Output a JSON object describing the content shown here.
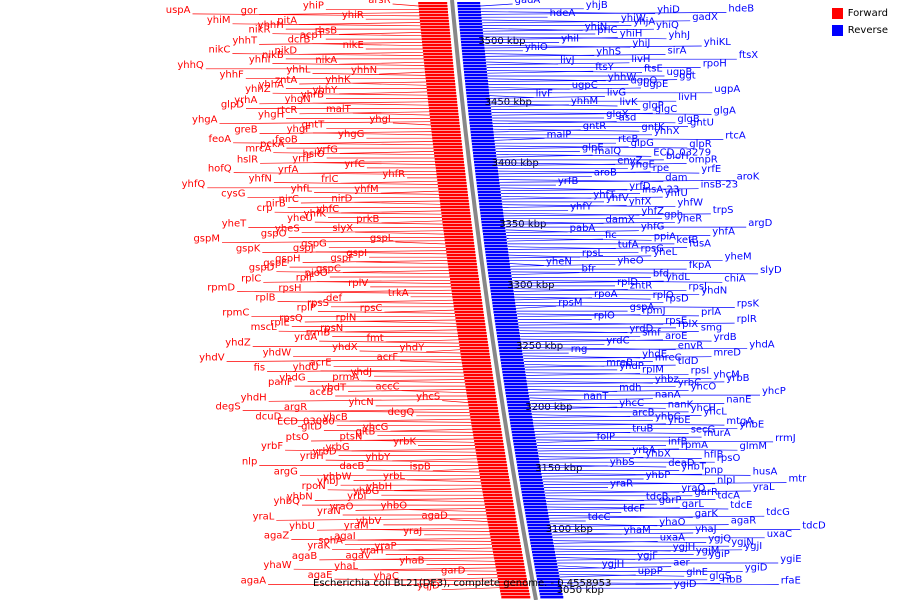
{
  "legend": {
    "forward": {
      "label": "Forward",
      "color": "#ff0000"
    },
    "reverse": {
      "label": "Reverse",
      "color": "#0000ff"
    }
  },
  "caption": "Escherichia coli BL21(DE3), complete genome. - 0.4558953",
  "scale_labels": [
    "3500 kbp",
    "3450 kbp",
    "3400 kbp",
    "3350 kbp",
    "3300 kbp",
    "3250 kbp",
    "3200 kbp",
    "3150 kbp",
    "3100 kbp",
    "3050 kbp"
  ],
  "genes": {
    "forward": [
      "arsR",
      "yhiP",
      "gor",
      "uspA",
      "yhiR",
      "pitA",
      "yhiM",
      "yhhH",
      "rhsB",
      "nikR",
      "acpT",
      "yhhT",
      "dcrB",
      "nikE",
      "nikD",
      "nikC",
      "nikB",
      "nikA",
      "yhhI",
      "yhhQ",
      "yhhN",
      "yhhL",
      "yhhF",
      "zntA",
      "yhhK",
      "yhhA",
      "yhhY",
      "yhhZ",
      "yhrB",
      "yrhA",
      "yhgN",
      "glpD",
      "rtcR",
      "malT",
      "yhgH",
      "yhgA",
      "yhgI",
      "gntT",
      "greB",
      "yhgF",
      "yhgG",
      "feoB",
      "feoA",
      "pckA",
      "yrfG",
      "mrcA",
      "hslO",
      "hslR",
      "yrfF",
      "yrfC",
      "yrfA",
      "hofQ",
      "yhfR",
      "frlC",
      "yhfN",
      "yhfQ",
      "yhfM",
      "yhfL",
      "cysG",
      "nirC",
      "nirD",
      "nirB",
      "yhfC",
      "crp",
      "yhfK",
      "prkB",
      "yheU",
      "yheT",
      "yheS",
      "slyX",
      "gspO",
      "gspM",
      "gspL",
      "gspG",
      "gspK",
      "gspJ",
      "gspI",
      "gspH",
      "gspF",
      "gspE",
      "gspC",
      "gspD",
      "pioO",
      "rplC",
      "rplF",
      "rplV",
      "rpsH",
      "rpmD",
      "trkA",
      "def",
      "rplB",
      "rpsS",
      "rpsC",
      "rplP",
      "rpmC",
      "rpsQ",
      "rplN",
      "rplE",
      "rpsN",
      "mscL",
      "rrmB",
      "fmt",
      "yrdA",
      "yhdZ",
      "yhdY",
      "yhdX",
      "yhdW",
      "yhdV",
      "acrF",
      "acrE",
      "fis",
      "yhdU",
      "yhdJ",
      "yhdG",
      "prmA",
      "panF",
      "yhdT",
      "accC",
      "accB",
      "yhdH",
      "yhcS",
      "yhcN",
      "argR",
      "degS",
      "degQ",
      "yhcB",
      "dcuD",
      "ECD_03080",
      "yhcG",
      "gltD",
      "gltB",
      "ptsO",
      "ptsN",
      "yrbK",
      "yrbG",
      "yrbF",
      "yrbD",
      "yhbY",
      "yrbH",
      "nlp",
      "ispB",
      "dacB",
      "argG",
      "yhbW",
      "yrbL",
      "yhbJ",
      "yhbH",
      "rpoN",
      "yhbG",
      "yhbN",
      "yrbI",
      "yhbQ",
      "yraO",
      "yhbO",
      "yraN",
      "yraL",
      "agaD",
      "yhbV",
      "yhbU",
      "yraM",
      "yraJ",
      "agaI",
      "agaZ",
      "sohA",
      "yraP",
      "yraK",
      "yraH",
      "agaB",
      "agaV",
      "yhaB",
      "yhaL",
      "yhaW",
      "garD",
      "yhaC",
      "agaE",
      "agaA",
      "yqjD"
    ],
    "reverse": [
      "gadA",
      "yhjB",
      "yhiD",
      "hdeB",
      "hdeA",
      "yhiW",
      "gadX",
      "yhjA",
      "yhiN",
      "yhiQ",
      "prlC",
      "yhhJ",
      "yhiH",
      "yhiI",
      "yhiJ",
      "yhiKL",
      "yhiO",
      "yhhS",
      "sirA",
      "ftsX",
      "livJ",
      "livH",
      "rpoH",
      "ftsE",
      "ftsY",
      "ugpB",
      "yhhW",
      "ggt",
      "ugpQ",
      "ugpC",
      "ugpE",
      "ugpA",
      "livF",
      "livG",
      "livH",
      "livK",
      "yhhM",
      "glgP",
      "glgA",
      "glgC",
      "glgX",
      "glgB",
      "asd",
      "gntU",
      "gntK",
      "gntR",
      "yhhX",
      "rtcA",
      "malP",
      "rtcB",
      "glpR",
      "glpG",
      "glpE",
      "ECD_03279",
      "malQ",
      "bioH",
      "envZ",
      "ompR",
      "yhgE",
      "yrfE",
      "rpe",
      "aroB",
      "dam",
      "aroK",
      "yrfB",
      "yrfD",
      "insB-23",
      "insA-23",
      "yhfT",
      "yhfU",
      "yhfV",
      "yhfW",
      "yhfX",
      "yhfY",
      "yhfZ",
      "trpS",
      "gph",
      "damX",
      "yheR",
      "argD",
      "pabA",
      "yhfG",
      "yhfA",
      "ppiA",
      "fic",
      "kefB",
      "tufA",
      "fusA",
      "rpsG",
      "rpsL",
      "yheL",
      "yheM",
      "yheN",
      "yheO",
      "fkpA",
      "slyD",
      "bfr",
      "bfd",
      "chiA",
      "yhdL",
      "rplD",
      "rpsJ",
      "zntR",
      "yhdN",
      "rplQ",
      "rpoA",
      "rpsD",
      "rpsK",
      "rpsM",
      "gspA",
      "prlA",
      "rpmJ",
      "rplO",
      "rpsE",
      "rplR",
      "rplX",
      "yrdD",
      "smg",
      "smf",
      "yrdB",
      "aroE",
      "yrdC",
      "envR",
      "yhdA",
      "rng",
      "yhdE",
      "mreD",
      "mreC",
      "mreB",
      "tldD",
      "yhdP",
      "rpsI",
      "rplM",
      "yhcM",
      "yhbz",
      "yrbB",
      "yrbC",
      "mdh",
      "yhcO",
      "yhcP",
      "nanT",
      "nanA",
      "nanE",
      "nanK",
      "yhcC",
      "yhcH",
      "arcB",
      "yhcL",
      "yhbC",
      "mtgA",
      "yrbE",
      "yhbE",
      "secG",
      "truB",
      "murA",
      "rrmJ",
      "folP",
      "infB",
      "glmM",
      "rpmA",
      "yrbA",
      "hfIB",
      "yhbX",
      "rpsO",
      "deaD",
      "yhbS",
      "yhbT",
      "husA",
      "pnp",
      "yhbP",
      "nlpI",
      "mtr",
      "yraR",
      "yraQ",
      "yraL",
      "garR",
      "tdcB",
      "tdcA",
      "garP",
      "tdcE",
      "garL",
      "tdcF",
      "garK",
      "tdcG",
      "tdcC",
      "yhaO",
      "agaR",
      "tdcD",
      "yhaM",
      "yhaJ",
      "uxaC",
      "ygjQ",
      "uxaA",
      "ygjN",
      "ygjH",
      "ygjI",
      "ygjM",
      "ygjF",
      "ygiP",
      "ygiE",
      "ygjH",
      "aer",
      "ygiD",
      "glnE",
      "uppP",
      "glgS",
      "rfaE",
      "ribB",
      "ygiD"
    ]
  }
}
